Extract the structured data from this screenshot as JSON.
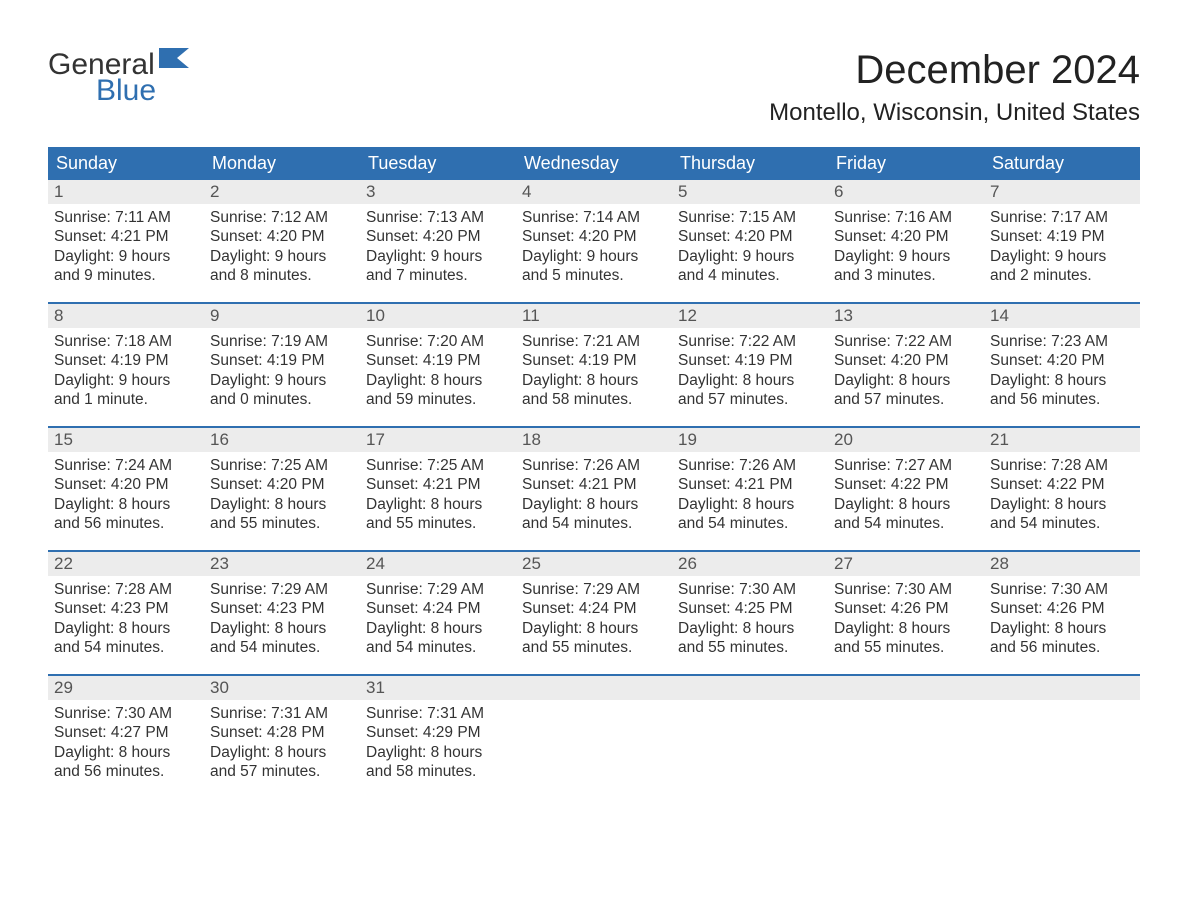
{
  "logo": {
    "text1": "General",
    "text2": "Blue",
    "flag_color": "#2f6fb0"
  },
  "title": "December 2024",
  "location": "Montello, Wisconsin, United States",
  "colors": {
    "header_bg": "#2f6fb0",
    "header_text": "#ffffff",
    "daynum_bg": "#ececec",
    "text": "#333333",
    "rule": "#2f6fb0",
    "background": "#ffffff"
  },
  "typography": {
    "title_fontsize": 40,
    "location_fontsize": 24,
    "weekday_fontsize": 18,
    "body_fontsize": 15.5
  },
  "weekdays": [
    "Sunday",
    "Monday",
    "Tuesday",
    "Wednesday",
    "Thursday",
    "Friday",
    "Saturday"
  ],
  "weeks": [
    [
      {
        "n": "1",
        "sunrise": "Sunrise: 7:11 AM",
        "sunset": "Sunset: 4:21 PM",
        "d1": "Daylight: 9 hours",
        "d2": "and 9 minutes."
      },
      {
        "n": "2",
        "sunrise": "Sunrise: 7:12 AM",
        "sunset": "Sunset: 4:20 PM",
        "d1": "Daylight: 9 hours",
        "d2": "and 8 minutes."
      },
      {
        "n": "3",
        "sunrise": "Sunrise: 7:13 AM",
        "sunset": "Sunset: 4:20 PM",
        "d1": "Daylight: 9 hours",
        "d2": "and 7 minutes."
      },
      {
        "n": "4",
        "sunrise": "Sunrise: 7:14 AM",
        "sunset": "Sunset: 4:20 PM",
        "d1": "Daylight: 9 hours",
        "d2": "and 5 minutes."
      },
      {
        "n": "5",
        "sunrise": "Sunrise: 7:15 AM",
        "sunset": "Sunset: 4:20 PM",
        "d1": "Daylight: 9 hours",
        "d2": "and 4 minutes."
      },
      {
        "n": "6",
        "sunrise": "Sunrise: 7:16 AM",
        "sunset": "Sunset: 4:20 PM",
        "d1": "Daylight: 9 hours",
        "d2": "and 3 minutes."
      },
      {
        "n": "7",
        "sunrise": "Sunrise: 7:17 AM",
        "sunset": "Sunset: 4:19 PM",
        "d1": "Daylight: 9 hours",
        "d2": "and 2 minutes."
      }
    ],
    [
      {
        "n": "8",
        "sunrise": "Sunrise: 7:18 AM",
        "sunset": "Sunset: 4:19 PM",
        "d1": "Daylight: 9 hours",
        "d2": "and 1 minute."
      },
      {
        "n": "9",
        "sunrise": "Sunrise: 7:19 AM",
        "sunset": "Sunset: 4:19 PM",
        "d1": "Daylight: 9 hours",
        "d2": "and 0 minutes."
      },
      {
        "n": "10",
        "sunrise": "Sunrise: 7:20 AM",
        "sunset": "Sunset: 4:19 PM",
        "d1": "Daylight: 8 hours",
        "d2": "and 59 minutes."
      },
      {
        "n": "11",
        "sunrise": "Sunrise: 7:21 AM",
        "sunset": "Sunset: 4:19 PM",
        "d1": "Daylight: 8 hours",
        "d2": "and 58 minutes."
      },
      {
        "n": "12",
        "sunrise": "Sunrise: 7:22 AM",
        "sunset": "Sunset: 4:19 PM",
        "d1": "Daylight: 8 hours",
        "d2": "and 57 minutes."
      },
      {
        "n": "13",
        "sunrise": "Sunrise: 7:22 AM",
        "sunset": "Sunset: 4:20 PM",
        "d1": "Daylight: 8 hours",
        "d2": "and 57 minutes."
      },
      {
        "n": "14",
        "sunrise": "Sunrise: 7:23 AM",
        "sunset": "Sunset: 4:20 PM",
        "d1": "Daylight: 8 hours",
        "d2": "and 56 minutes."
      }
    ],
    [
      {
        "n": "15",
        "sunrise": "Sunrise: 7:24 AM",
        "sunset": "Sunset: 4:20 PM",
        "d1": "Daylight: 8 hours",
        "d2": "and 56 minutes."
      },
      {
        "n": "16",
        "sunrise": "Sunrise: 7:25 AM",
        "sunset": "Sunset: 4:20 PM",
        "d1": "Daylight: 8 hours",
        "d2": "and 55 minutes."
      },
      {
        "n": "17",
        "sunrise": "Sunrise: 7:25 AM",
        "sunset": "Sunset: 4:21 PM",
        "d1": "Daylight: 8 hours",
        "d2": "and 55 minutes."
      },
      {
        "n": "18",
        "sunrise": "Sunrise: 7:26 AM",
        "sunset": "Sunset: 4:21 PM",
        "d1": "Daylight: 8 hours",
        "d2": "and 54 minutes."
      },
      {
        "n": "19",
        "sunrise": "Sunrise: 7:26 AM",
        "sunset": "Sunset: 4:21 PM",
        "d1": "Daylight: 8 hours",
        "d2": "and 54 minutes."
      },
      {
        "n": "20",
        "sunrise": "Sunrise: 7:27 AM",
        "sunset": "Sunset: 4:22 PM",
        "d1": "Daylight: 8 hours",
        "d2": "and 54 minutes."
      },
      {
        "n": "21",
        "sunrise": "Sunrise: 7:28 AM",
        "sunset": "Sunset: 4:22 PM",
        "d1": "Daylight: 8 hours",
        "d2": "and 54 minutes."
      }
    ],
    [
      {
        "n": "22",
        "sunrise": "Sunrise: 7:28 AM",
        "sunset": "Sunset: 4:23 PM",
        "d1": "Daylight: 8 hours",
        "d2": "and 54 minutes."
      },
      {
        "n": "23",
        "sunrise": "Sunrise: 7:29 AM",
        "sunset": "Sunset: 4:23 PM",
        "d1": "Daylight: 8 hours",
        "d2": "and 54 minutes."
      },
      {
        "n": "24",
        "sunrise": "Sunrise: 7:29 AM",
        "sunset": "Sunset: 4:24 PM",
        "d1": "Daylight: 8 hours",
        "d2": "and 54 minutes."
      },
      {
        "n": "25",
        "sunrise": "Sunrise: 7:29 AM",
        "sunset": "Sunset: 4:24 PM",
        "d1": "Daylight: 8 hours",
        "d2": "and 55 minutes."
      },
      {
        "n": "26",
        "sunrise": "Sunrise: 7:30 AM",
        "sunset": "Sunset: 4:25 PM",
        "d1": "Daylight: 8 hours",
        "d2": "and 55 minutes."
      },
      {
        "n": "27",
        "sunrise": "Sunrise: 7:30 AM",
        "sunset": "Sunset: 4:26 PM",
        "d1": "Daylight: 8 hours",
        "d2": "and 55 minutes."
      },
      {
        "n": "28",
        "sunrise": "Sunrise: 7:30 AM",
        "sunset": "Sunset: 4:26 PM",
        "d1": "Daylight: 8 hours",
        "d2": "and 56 minutes."
      }
    ],
    [
      {
        "n": "29",
        "sunrise": "Sunrise: 7:30 AM",
        "sunset": "Sunset: 4:27 PM",
        "d1": "Daylight: 8 hours",
        "d2": "and 56 minutes."
      },
      {
        "n": "30",
        "sunrise": "Sunrise: 7:31 AM",
        "sunset": "Sunset: 4:28 PM",
        "d1": "Daylight: 8 hours",
        "d2": "and 57 minutes."
      },
      {
        "n": "31",
        "sunrise": "Sunrise: 7:31 AM",
        "sunset": "Sunset: 4:29 PM",
        "d1": "Daylight: 8 hours",
        "d2": "and 58 minutes."
      },
      null,
      null,
      null,
      null
    ]
  ]
}
